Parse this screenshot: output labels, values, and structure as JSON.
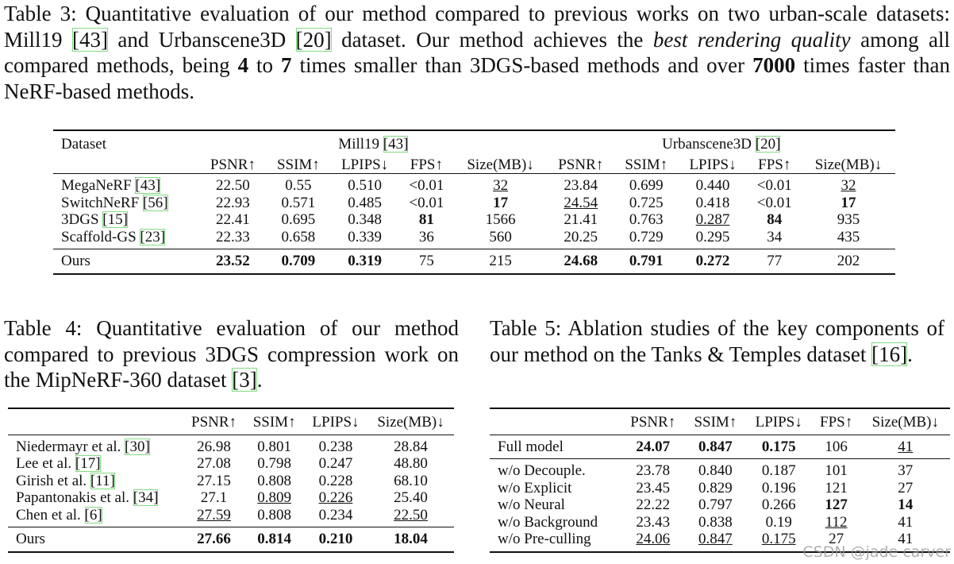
{
  "table3": {
    "caption": [
      {
        "text": "Table 3: Quantitative evaluation of our method compared to previous works on two urban-scale datasets: Mill19 [43] and Urbanscene3D [20] dataset. Our method achieves the "
      },
      {
        "text": "best rendering quality",
        "style": "italic"
      },
      {
        "text": " among all compared methods, being "
      },
      {
        "text": "4",
        "style": "bold"
      },
      {
        "text": " to "
      },
      {
        "text": "7",
        "style": "bold"
      },
      {
        "text": " times smaller than 3DGS-based methods and over "
      },
      {
        "text": "7000",
        "style": "bold"
      },
      {
        "text": " times faster than NeRF-based methods."
      }
    ],
    "corner": "Dataset",
    "datasets": [
      "Mill19 [43]",
      "Urbanscene3D [20]"
    ],
    "metrics": [
      "PSNR↑",
      "SSIM↑",
      "LPIPS↓",
      "FPS↑",
      "Size(MB)↓",
      "PSNR↑",
      "SSIM↑",
      "LPIPS↓",
      "FPS↑",
      "Size(MB)↓"
    ],
    "groups": [
      [
        {
          "label": "MegaNeRF [43]",
          "cells": [
            "22.50",
            "0.55",
            "0.510",
            "<0.01",
            {
              "text": "32",
              "style": "underline"
            },
            "23.84",
            "0.699",
            "0.440",
            "<0.01",
            {
              "text": "32",
              "style": "underline"
            }
          ]
        },
        {
          "label": "SwitchNeRF [56]",
          "cells": [
            "22.93",
            "0.571",
            "0.485",
            "<0.01",
            {
              "text": "17",
              "style": "bold"
            },
            {
              "text": "24.54",
              "style": "underline"
            },
            "0.725",
            "0.418",
            "<0.01",
            {
              "text": "17",
              "style": "bold"
            }
          ]
        },
        {
          "label": "3DGS [15]",
          "cells": [
            "22.41",
            "0.695",
            "0.348",
            {
              "text": "81",
              "style": "bold"
            },
            "1566",
            "21.41",
            "0.763",
            {
              "text": "0.287",
              "style": "underline"
            },
            {
              "text": "84",
              "style": "bold"
            },
            "935"
          ]
        },
        {
          "label": "Scaffold-GS [23]",
          "cells": [
            "22.33",
            "0.658",
            "0.339",
            "36",
            "560",
            "20.25",
            "0.729",
            "0.295",
            "34",
            "435"
          ]
        }
      ],
      [
        {
          "label": "Ours",
          "cells": [
            {
              "text": "23.52",
              "style": "bold"
            },
            {
              "text": "0.709",
              "style": "bold"
            },
            {
              "text": "0.319",
              "style": "bold"
            },
            "75",
            "215",
            {
              "text": "24.68",
              "style": "bold"
            },
            {
              "text": "0.791",
              "style": "bold"
            },
            {
              "text": "0.272",
              "style": "bold"
            },
            "77",
            "202"
          ]
        }
      ]
    ]
  },
  "table4": {
    "caption": [
      {
        "text": "Table 4: Quantitative evaluation of our method compared to previous 3DGS compression work on the MipNeRF-360 dataset [3]."
      }
    ],
    "metrics": [
      "PSNR↑",
      "SSIM↑",
      "LPIPS↓",
      "Size(MB)↓"
    ],
    "groups": [
      [
        {
          "label": "Niedermayr et al. [30]",
          "cells": [
            "26.98",
            "0.801",
            "0.238",
            "28.84"
          ]
        },
        {
          "label": "Lee et al. [17]",
          "cells": [
            "27.08",
            "0.798",
            "0.247",
            "48.80"
          ]
        },
        {
          "label": "Girish et al. [11]",
          "cells": [
            "27.15",
            "0.808",
            "0.228",
            "68.10"
          ]
        },
        {
          "label": "Papantonakis et al. [34]",
          "cells": [
            "27.1",
            {
              "text": "0.809",
              "style": "underline"
            },
            {
              "text": "0.226",
              "style": "underline"
            },
            "25.40"
          ]
        },
        {
          "label": "Chen et al. [6]",
          "cells": [
            {
              "text": "27.59",
              "style": "underline"
            },
            "0.808",
            "0.234",
            {
              "text": "22.50",
              "style": "underline"
            }
          ]
        }
      ],
      [
        {
          "label": "Ours",
          "cells": [
            {
              "text": "27.66",
              "style": "bold"
            },
            {
              "text": "0.814",
              "style": "bold"
            },
            {
              "text": "0.210",
              "style": "bold"
            },
            {
              "text": "18.04",
              "style": "bold"
            }
          ]
        }
      ]
    ]
  },
  "table5": {
    "caption": [
      {
        "text": "Table 5: Ablation studies of the key components of our method on the Tanks & Temples dataset [16]."
      }
    ],
    "metrics": [
      "PSNR↑",
      "SSIM↑",
      "LPIPS↓",
      "FPS↑",
      "Size(MB)↓"
    ],
    "groups": [
      [
        {
          "label": "Full model",
          "cells": [
            {
              "text": "24.07",
              "style": "bold"
            },
            {
              "text": "0.847",
              "style": "bold"
            },
            {
              "text": "0.175",
              "style": "bold"
            },
            "106",
            {
              "text": "41",
              "style": "underline"
            }
          ]
        }
      ],
      [
        {
          "label": "w/o Decouple.",
          "cells": [
            "23.78",
            "0.840",
            "0.187",
            "101",
            "37"
          ]
        },
        {
          "label": "w/o Explicit",
          "cells": [
            "23.45",
            "0.829",
            "0.196",
            "121",
            "27"
          ]
        },
        {
          "label": "w/o Neural",
          "cells": [
            "22.22",
            "0.797",
            "0.266",
            {
              "text": "127",
              "style": "bold"
            },
            {
              "text": "14",
              "style": "bold"
            }
          ]
        },
        {
          "label": "w/o Background",
          "cells": [
            "23.43",
            "0.838",
            "0.19",
            {
              "text": "112",
              "style": "underline"
            },
            "41"
          ]
        },
        {
          "label": "w/o Pre-culling",
          "cells": [
            {
              "text": "24.06",
              "style": "underline"
            },
            {
              "text": "0.847",
              "style": "underline"
            },
            {
              "text": "0.175",
              "style": "underline"
            },
            "27",
            "41"
          ]
        }
      ]
    ]
  },
  "watermark": "CSDN @jade carver"
}
